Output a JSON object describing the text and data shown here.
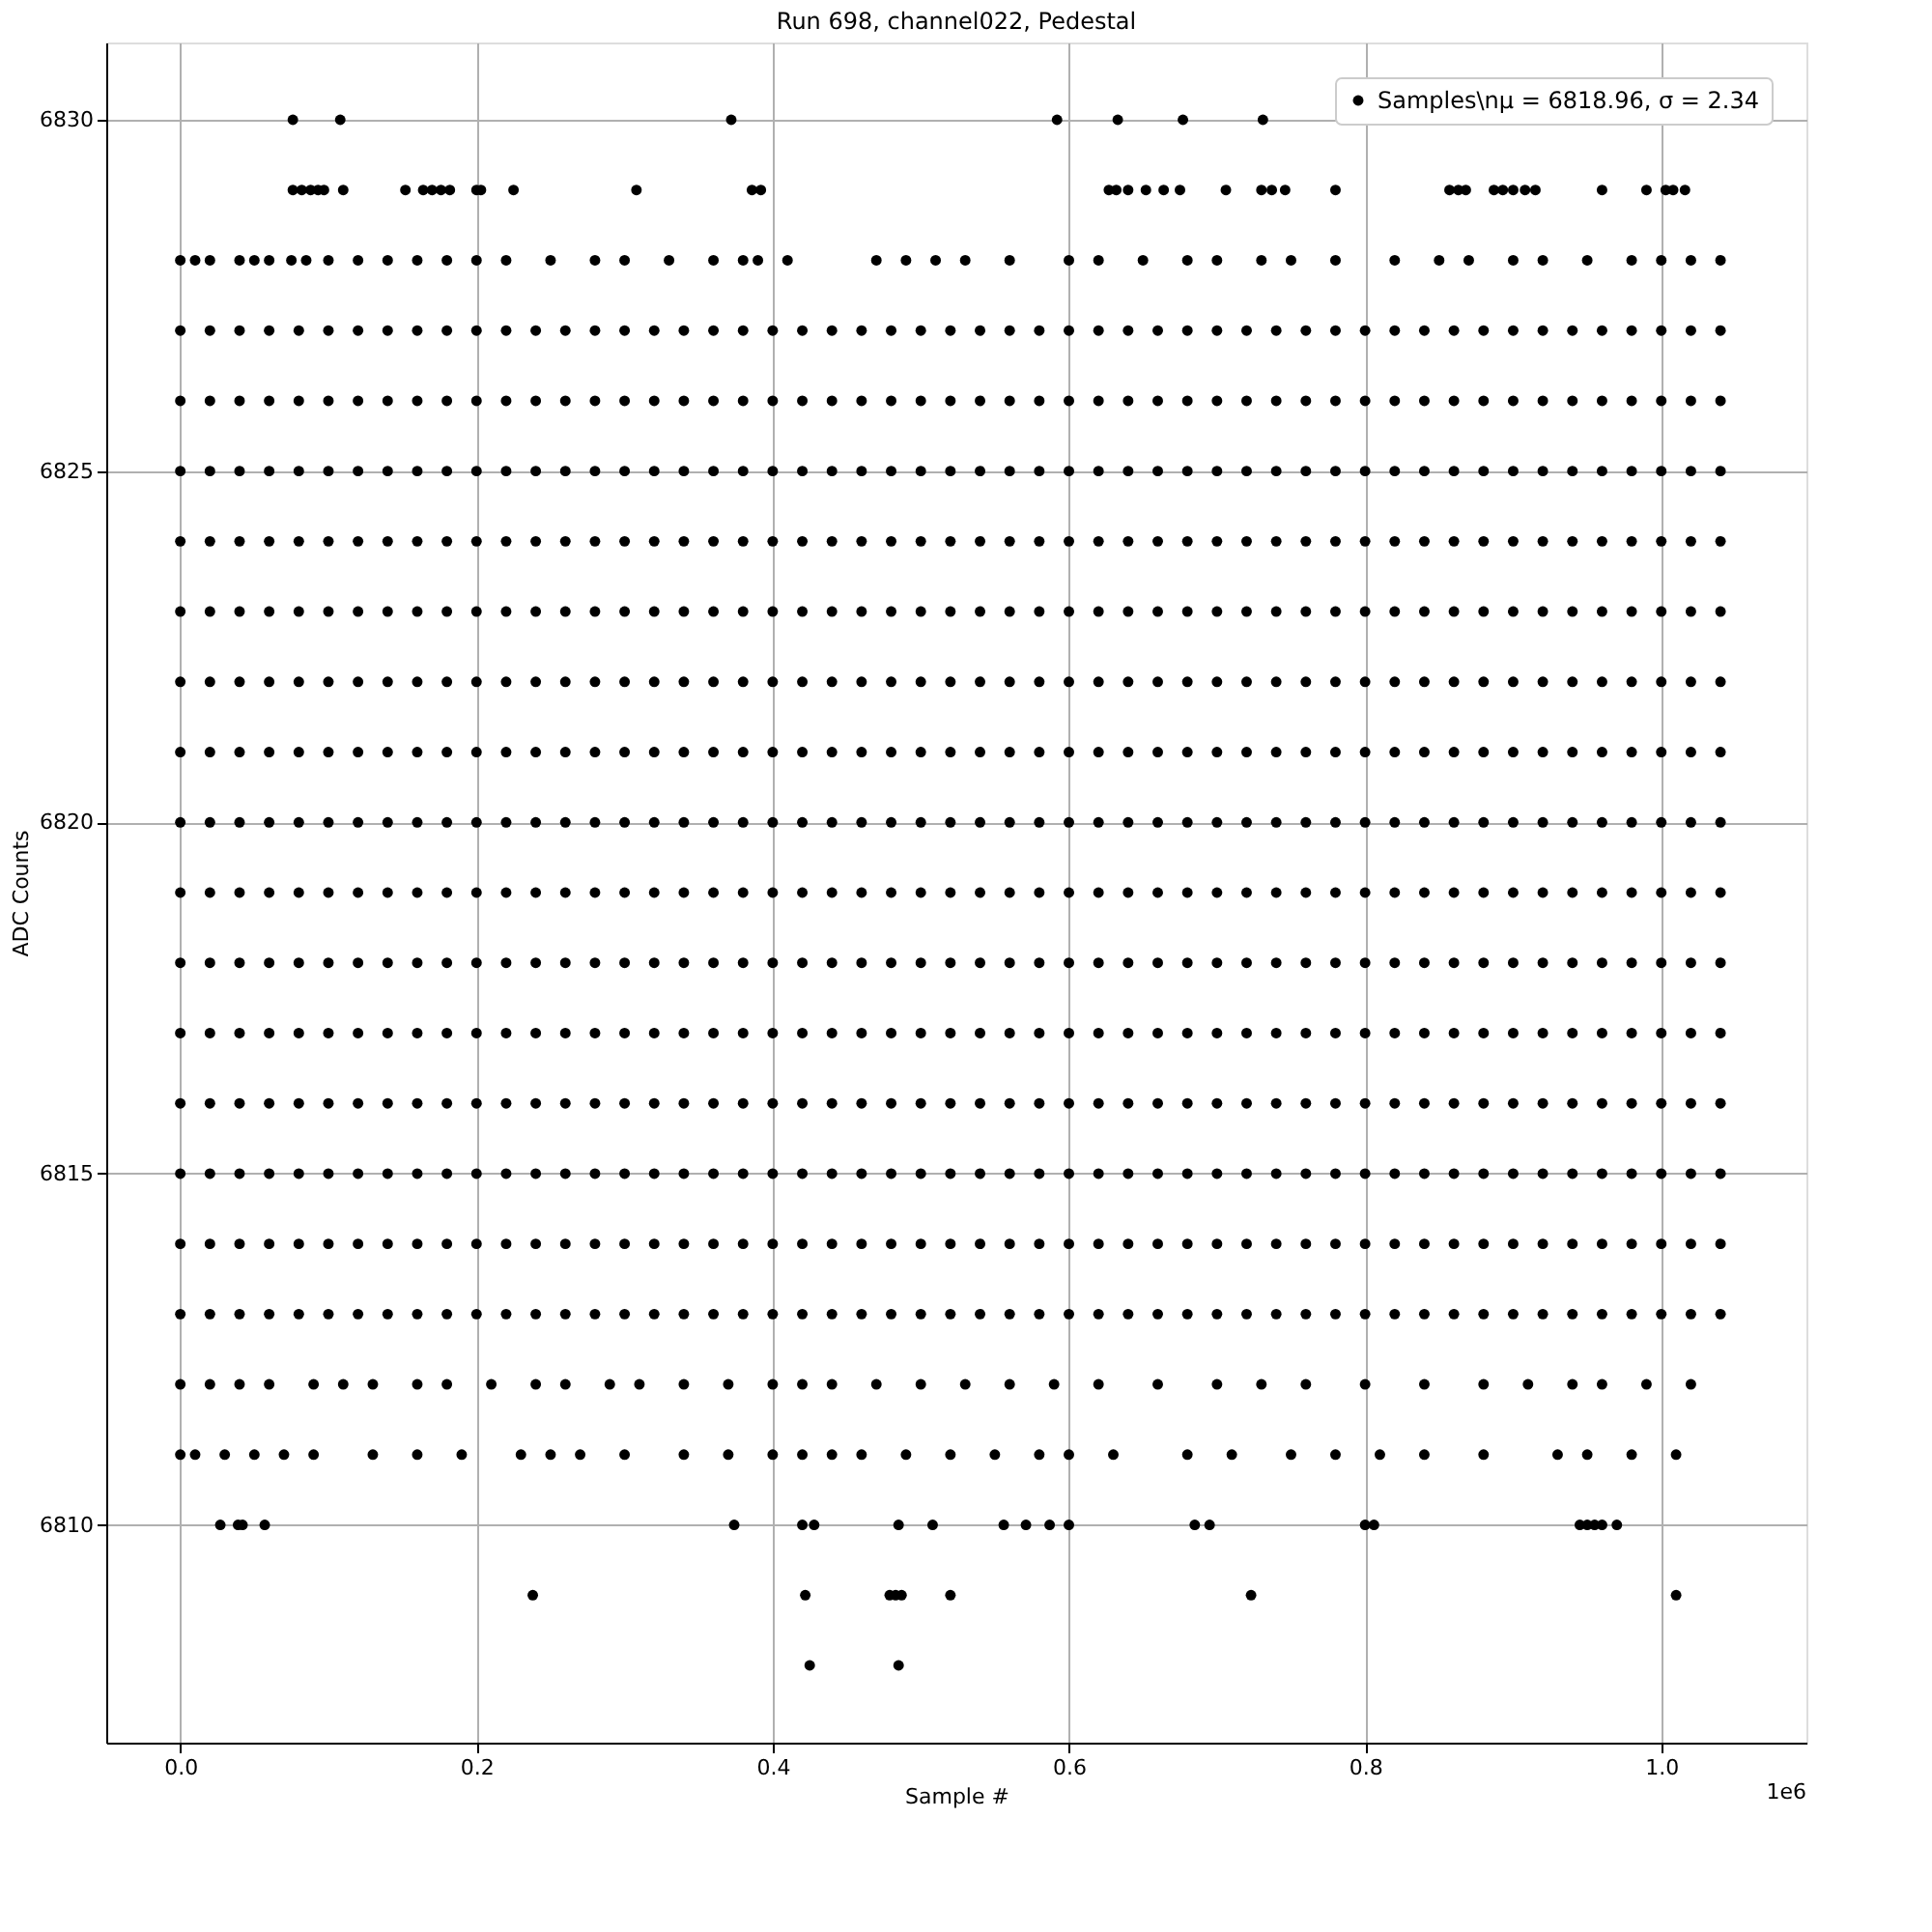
{
  "chart_data": {
    "type": "scatter",
    "title": "Run 698, channel022, Pedestal",
    "xlabel": "Sample #",
    "ylabel": "ADC Counts",
    "annotations": [
      "1e6"
    ],
    "xlim": [
      -0.05,
      1.098
    ],
    "ylim": [
      6806.9,
      6831.1
    ],
    "xticks": [
      {
        "value": 0,
        "label": "0.0"
      },
      {
        "value": 0.2,
        "label": "0.2"
      },
      {
        "value": 0.4,
        "label": "0.4"
      },
      {
        "value": 0.6,
        "label": "0.6"
      },
      {
        "value": 0.8,
        "label": "0.8"
      },
      {
        "value": 1.0,
        "label": "1.0"
      }
    ],
    "yticks": [
      6810,
      6815,
      6820,
      6825,
      6830
    ],
    "grid": true,
    "legend": "top right",
    "marker": "circle",
    "x": [
      0,
      0.02,
      0.04,
      0.06,
      0.08,
      0.1,
      0.12,
      0.14,
      0.16,
      0.18,
      0.2,
      0.22,
      0.24,
      0.26,
      0.28,
      0.3,
      0.32,
      0.34,
      0.36,
      0.38,
      0.4,
      0.42,
      0.44,
      0.46,
      0.48,
      0.5,
      0.52,
      0.54,
      0.56,
      0.58,
      0.6,
      0.62,
      0.64,
      0.66,
      0.68,
      0.7,
      0.72,
      0.74,
      0.76,
      0.78,
      0.8,
      0.82,
      0.84,
      0.86,
      0.88,
      0.9,
      0.92,
      0.94,
      0.96,
      0.98,
      1.0,
      1.02,
      1.04
    ],
    "series": [
      {
        "name": "Samples\\nμ = 6818.96, σ = 2.34",
        "color": "#000000",
        "values": [
          6813,
          6813,
          6813,
          6813,
          6813,
          6813,
          6813,
          6813,
          6813,
          6813,
          6813,
          6813,
          6813,
          6813,
          6813,
          6813,
          6813,
          6813,
          6813,
          6813,
          6813,
          6813,
          6813,
          6813,
          6813,
          6813,
          6813,
          6813,
          6813,
          6813,
          6813,
          6813,
          6813,
          6813,
          6813,
          6813,
          6813,
          6813,
          6813,
          6813,
          6813,
          6813,
          6813,
          6813,
          6813,
          6813,
          6813,
          6813,
          6813,
          6813,
          6813,
          6813,
          6813
        ]
      },
      {
        "color": "#000000",
        "values": [
          6814,
          6814,
          6814,
          6814,
          6814,
          6814,
          6814,
          6814,
          6814,
          6814,
          6814,
          6814,
          6814,
          6814,
          6814,
          6814,
          6814,
          6814,
          6814,
          6814,
          6814,
          6814,
          6814,
          6814,
          6814,
          6814,
          6814,
          6814,
          6814,
          6814,
          6814,
          6814,
          6814,
          6814,
          6814,
          6814,
          6814,
          6814,
          6814,
          6814,
          6814,
          6814,
          6814,
          6814,
          6814,
          6814,
          6814,
          6814,
          6814,
          6814,
          6814,
          6814,
          6814
        ]
      },
      {
        "color": "#000000",
        "values": [
          6815,
          6815,
          6815,
          6815,
          6815,
          6815,
          6815,
          6815,
          6815,
          6815,
          6815,
          6815,
          6815,
          6815,
          6815,
          6815,
          6815,
          6815,
          6815,
          6815,
          6815,
          6815,
          6815,
          6815,
          6815,
          6815,
          6815,
          6815,
          6815,
          6815,
          6815,
          6815,
          6815,
          6815,
          6815,
          6815,
          6815,
          6815,
          6815,
          6815,
          6815,
          6815,
          6815,
          6815,
          6815,
          6815,
          6815,
          6815,
          6815,
          6815,
          6815,
          6815,
          6815
        ]
      },
      {
        "color": "#000000",
        "values": [
          6816,
          6816,
          6816,
          6816,
          6816,
          6816,
          6816,
          6816,
          6816,
          6816,
          6816,
          6816,
          6816,
          6816,
          6816,
          6816,
          6816,
          6816,
          6816,
          6816,
          6816,
          6816,
          6816,
          6816,
          6816,
          6816,
          6816,
          6816,
          6816,
          6816,
          6816,
          6816,
          6816,
          6816,
          6816,
          6816,
          6816,
          6816,
          6816,
          6816,
          6816,
          6816,
          6816,
          6816,
          6816,
          6816,
          6816,
          6816,
          6816,
          6816,
          6816,
          6816,
          6816
        ]
      },
      {
        "color": "#000000",
        "values": [
          6817,
          6817,
          6817,
          6817,
          6817,
          6817,
          6817,
          6817,
          6817,
          6817,
          6817,
          6817,
          6817,
          6817,
          6817,
          6817,
          6817,
          6817,
          6817,
          6817,
          6817,
          6817,
          6817,
          6817,
          6817,
          6817,
          6817,
          6817,
          6817,
          6817,
          6817,
          6817,
          6817,
          6817,
          6817,
          6817,
          6817,
          6817,
          6817,
          6817,
          6817,
          6817,
          6817,
          6817,
          6817,
          6817,
          6817,
          6817,
          6817,
          6817,
          6817,
          6817,
          6817
        ]
      },
      {
        "color": "#000000",
        "values": [
          6818,
          6818,
          6818,
          6818,
          6818,
          6818,
          6818,
          6818,
          6818,
          6818,
          6818,
          6818,
          6818,
          6818,
          6818,
          6818,
          6818,
          6818,
          6818,
          6818,
          6818,
          6818,
          6818,
          6818,
          6818,
          6818,
          6818,
          6818,
          6818,
          6818,
          6818,
          6818,
          6818,
          6818,
          6818,
          6818,
          6818,
          6818,
          6818,
          6818,
          6818,
          6818,
          6818,
          6818,
          6818,
          6818,
          6818,
          6818,
          6818,
          6818,
          6818,
          6818,
          6818
        ]
      },
      {
        "color": "#000000",
        "values": [
          6819,
          6819,
          6819,
          6819,
          6819,
          6819,
          6819,
          6819,
          6819,
          6819,
          6819,
          6819,
          6819,
          6819,
          6819,
          6819,
          6819,
          6819,
          6819,
          6819,
          6819,
          6819,
          6819,
          6819,
          6819,
          6819,
          6819,
          6819,
          6819,
          6819,
          6819,
          6819,
          6819,
          6819,
          6819,
          6819,
          6819,
          6819,
          6819,
          6819,
          6819,
          6819,
          6819,
          6819,
          6819,
          6819,
          6819,
          6819,
          6819,
          6819,
          6819,
          6819,
          6819
        ]
      },
      {
        "color": "#000000",
        "values": [
          6820,
          6820,
          6820,
          6820,
          6820,
          6820,
          6820,
          6820,
          6820,
          6820,
          6820,
          6820,
          6820,
          6820,
          6820,
          6820,
          6820,
          6820,
          6820,
          6820,
          6820,
          6820,
          6820,
          6820,
          6820,
          6820,
          6820,
          6820,
          6820,
          6820,
          6820,
          6820,
          6820,
          6820,
          6820,
          6820,
          6820,
          6820,
          6820,
          6820,
          6820,
          6820,
          6820,
          6820,
          6820,
          6820,
          6820,
          6820,
          6820,
          6820,
          6820,
          6820,
          6820
        ]
      },
      {
        "color": "#000000",
        "values": [
          6821,
          6821,
          6821,
          6821,
          6821,
          6821,
          6821,
          6821,
          6821,
          6821,
          6821,
          6821,
          6821,
          6821,
          6821,
          6821,
          6821,
          6821,
          6821,
          6821,
          6821,
          6821,
          6821,
          6821,
          6821,
          6821,
          6821,
          6821,
          6821,
          6821,
          6821,
          6821,
          6821,
          6821,
          6821,
          6821,
          6821,
          6821,
          6821,
          6821,
          6821,
          6821,
          6821,
          6821,
          6821,
          6821,
          6821,
          6821,
          6821,
          6821,
          6821,
          6821,
          6821
        ]
      },
      {
        "color": "#000000",
        "values": [
          6822,
          6822,
          6822,
          6822,
          6822,
          6822,
          6822,
          6822,
          6822,
          6822,
          6822,
          6822,
          6822,
          6822,
          6822,
          6822,
          6822,
          6822,
          6822,
          6822,
          6822,
          6822,
          6822,
          6822,
          6822,
          6822,
          6822,
          6822,
          6822,
          6822,
          6822,
          6822,
          6822,
          6822,
          6822,
          6822,
          6822,
          6822,
          6822,
          6822,
          6822,
          6822,
          6822,
          6822,
          6822,
          6822,
          6822,
          6822,
          6822,
          6822,
          6822,
          6822,
          6822
        ]
      },
      {
        "color": "#000000",
        "values": [
          6823,
          6823,
          6823,
          6823,
          6823,
          6823,
          6823,
          6823,
          6823,
          6823,
          6823,
          6823,
          6823,
          6823,
          6823,
          6823,
          6823,
          6823,
          6823,
          6823,
          6823,
          6823,
          6823,
          6823,
          6823,
          6823,
          6823,
          6823,
          6823,
          6823,
          6823,
          6823,
          6823,
          6823,
          6823,
          6823,
          6823,
          6823,
          6823,
          6823,
          6823,
          6823,
          6823,
          6823,
          6823,
          6823,
          6823,
          6823,
          6823,
          6823,
          6823,
          6823,
          6823
        ]
      },
      {
        "color": "#000000",
        "values": [
          6824,
          6824,
          6824,
          6824,
          6824,
          6824,
          6824,
          6824,
          6824,
          6824,
          6824,
          6824,
          6824,
          6824,
          6824,
          6824,
          6824,
          6824,
          6824,
          6824,
          6824,
          6824,
          6824,
          6824,
          6824,
          6824,
          6824,
          6824,
          6824,
          6824,
          6824,
          6824,
          6824,
          6824,
          6824,
          6824,
          6824,
          6824,
          6824,
          6824,
          6824,
          6824,
          6824,
          6824,
          6824,
          6824,
          6824,
          6824,
          6824,
          6824,
          6824,
          6824,
          6824
        ]
      },
      {
        "color": "#000000",
        "values": [
          6825,
          6825,
          6825,
          6825,
          6825,
          6825,
          6825,
          6825,
          6825,
          6825,
          6825,
          6825,
          6825,
          6825,
          6825,
          6825,
          6825,
          6825,
          6825,
          6825,
          6825,
          6825,
          6825,
          6825,
          6825,
          6825,
          6825,
          6825,
          6825,
          6825,
          6825,
          6825,
          6825,
          6825,
          6825,
          6825,
          6825,
          6825,
          6825,
          6825,
          6825,
          6825,
          6825,
          6825,
          6825,
          6825,
          6825,
          6825,
          6825,
          6825,
          6825,
          6825,
          6825
        ]
      },
      {
        "color": "#000000",
        "values": [
          6826,
          6826,
          6826,
          6826,
          6826,
          6826,
          6826,
          6826,
          6826,
          6826,
          6826,
          6826,
          6826,
          6826,
          6826,
          6826,
          6826,
          6826,
          6826,
          6826,
          6826,
          6826,
          6826,
          6826,
          6826,
          6826,
          6826,
          6826,
          6826,
          6826,
          6826,
          6826,
          6826,
          6826,
          6826,
          6826,
          6826,
          6826,
          6826,
          6826,
          6826,
          6826,
          6826,
          6826,
          6826,
          6826,
          6826,
          6826,
          6826,
          6826,
          6826,
          6826,
          6826
        ]
      },
      {
        "color": "#000000",
        "values": [
          6827,
          6827,
          6827,
          6827,
          6827,
          6827,
          6827,
          6827,
          6827,
          6827,
          6827,
          6827,
          6827,
          6827,
          6827,
          6827,
          6827,
          6827,
          6827,
          6827,
          6827,
          6827,
          6827,
          6827,
          6827,
          6827,
          6827,
          6827,
          6827,
          6827,
          6827,
          6827,
          6827,
          6827,
          6827,
          6827,
          6827,
          6827,
          6827,
          6827,
          6827,
          6827,
          6827,
          6827,
          6827,
          6827,
          6827,
          6827,
          6827,
          6827,
          6827,
          6827,
          6827
        ]
      },
      {
        "color": "#000000",
        "x": [
          0.076,
          0.108,
          0.372,
          0.592,
          0.633,
          0.677,
          0.731
        ],
        "values": [
          6830,
          6830,
          6830,
          6830,
          6830,
          6830,
          6830
        ]
      },
      {
        "color": "#000000",
        "x": [
          0.076,
          0.082,
          0.088,
          0.093,
          0.097,
          0.11,
          0.152,
          0.164,
          0.17,
          0.176,
          0.182,
          0.2,
          0.203,
          0.225,
          0.308,
          0.386,
          0.392,
          0.627,
          0.632,
          0.64,
          0.652,
          0.664,
          0.675,
          0.706,
          0.73,
          0.737,
          0.746,
          0.78,
          0.857,
          0.863,
          0.868,
          0.887,
          0.893,
          0.9,
          0.908,
          0.915,
          0.96,
          0.99,
          1.003,
          1.008,
          1.016
        ],
        "values": [
          6829,
          6829,
          6829,
          6829,
          6829,
          6829,
          6829,
          6829,
          6829,
          6829,
          6829,
          6829,
          6829,
          6829,
          6829,
          6829,
          6829,
          6829,
          6829,
          6829,
          6829,
          6829,
          6829,
          6829,
          6829,
          6829,
          6829,
          6829,
          6829,
          6829,
          6829,
          6829,
          6829,
          6829,
          6829,
          6829,
          6829,
          6829,
          6829,
          6829,
          6829
        ]
      },
      {
        "color": "#000000",
        "x": [
          0,
          0.01,
          0.02,
          0.04,
          0.05,
          0.06,
          0.075,
          0.085,
          0.1,
          0.12,
          0.14,
          0.16,
          0.18,
          0.2,
          0.22,
          0.25,
          0.28,
          0.3,
          0.33,
          0.36,
          0.38,
          0.39,
          0.41,
          0.47,
          0.49,
          0.51,
          0.53,
          0.56,
          0.6,
          0.62,
          0.65,
          0.68,
          0.7,
          0.73,
          0.75,
          0.78,
          0.82,
          0.85,
          0.87,
          0.9,
          0.92,
          0.95,
          0.98,
          1.0,
          1.02,
          1.04
        ],
        "values": [
          6828,
          6828,
          6828,
          6828,
          6828,
          6828,
          6828,
          6828,
          6828,
          6828,
          6828,
          6828,
          6828,
          6828,
          6828,
          6828,
          6828,
          6828,
          6828,
          6828,
          6828,
          6828,
          6828,
          6828,
          6828,
          6828,
          6828,
          6828,
          6828,
          6828,
          6828,
          6828,
          6828,
          6828,
          6828,
          6828,
          6828,
          6828,
          6828,
          6828,
          6828,
          6828,
          6828,
          6828,
          6828,
          6828
        ]
      },
      {
        "color": "#000000",
        "x": [
          0,
          0.02,
          0.04,
          0.06,
          0.09,
          0.11,
          0.13,
          0.16,
          0.18,
          0.21,
          0.24,
          0.26,
          0.29,
          0.31,
          0.34,
          0.37,
          0.4,
          0.42,
          0.44,
          0.47,
          0.5,
          0.53,
          0.56,
          0.59,
          0.62,
          0.66,
          0.7,
          0.73,
          0.76,
          0.8,
          0.84,
          0.88,
          0.91,
          0.94,
          0.96,
          0.99,
          1.02
        ],
        "values": [
          6812,
          6812,
          6812,
          6812,
          6812,
          6812,
          6812,
          6812,
          6812,
          6812,
          6812,
          6812,
          6812,
          6812,
          6812,
          6812,
          6812,
          6812,
          6812,
          6812,
          6812,
          6812,
          6812,
          6812,
          6812,
          6812,
          6812,
          6812,
          6812,
          6812,
          6812,
          6812,
          6812,
          6812,
          6812,
          6812,
          6812
        ]
      },
      {
        "color": "#000000",
        "x": [
          0,
          0.01,
          0.03,
          0.05,
          0.07,
          0.09,
          0.13,
          0.16,
          0.19,
          0.23,
          0.25,
          0.27,
          0.3,
          0.34,
          0.37,
          0.4,
          0.42,
          0.44,
          0.46,
          0.49,
          0.52,
          0.55,
          0.58,
          0.6,
          0.63,
          0.68,
          0.71,
          0.75,
          0.78,
          0.81,
          0.84,
          0.88,
          0.93,
          0.95,
          0.98,
          1.01
        ],
        "values": [
          6811,
          6811,
          6811,
          6811,
          6811,
          6811,
          6811,
          6811,
          6811,
          6811,
          6811,
          6811,
          6811,
          6811,
          6811,
          6811,
          6811,
          6811,
          6811,
          6811,
          6811,
          6811,
          6811,
          6811,
          6811,
          6811,
          6811,
          6811,
          6811,
          6811,
          6811,
          6811,
          6811,
          6811,
          6811,
          6811
        ]
      },
      {
        "color": "#000000",
        "x": [
          0.027,
          0.039,
          0.042,
          0.057,
          0.374,
          0.42,
          0.428,
          0.485,
          0.508,
          0.556,
          0.571,
          0.587,
          0.6,
          0.685,
          0.695,
          0.8,
          0.806,
          0.945,
          0.95,
          0.955,
          0.96,
          0.97
        ],
        "values": [
          6810,
          6810,
          6810,
          6810,
          6810,
          6810,
          6810,
          6810,
          6810,
          6810,
          6810,
          6810,
          6810,
          6810,
          6810,
          6810,
          6810,
          6810,
          6810,
          6810,
          6810,
          6810
        ]
      },
      {
        "color": "#000000",
        "x": [
          0.238,
          0.422,
          0.479,
          0.483,
          0.487,
          0.52,
          0.723,
          1.01
        ],
        "values": [
          6809,
          6809,
          6809,
          6809,
          6809,
          6809,
          6809,
          6809
        ]
      },
      {
        "color": "#000000",
        "x": [
          0.425,
          0.485
        ],
        "values": [
          6808,
          6808
        ]
      }
    ]
  }
}
